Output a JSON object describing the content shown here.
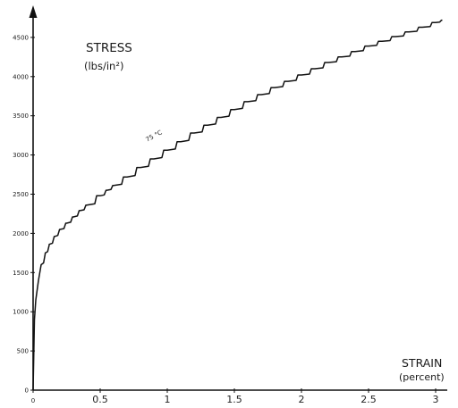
{
  "chart_data": {
    "type": "line",
    "ylabel": "STRESS",
    "ylabel_unit": "(lbs/in²)",
    "xlabel": "STRAIN",
    "xlabel_unit": "(percent)",
    "annotation": "75 °C",
    "annotation_at": [
      0.85,
      3100
    ],
    "xlim": [
      0,
      3.05
    ],
    "ylim": [
      0,
      4700
    ],
    "x_ticks": [
      0,
      0.5,
      1,
      1.5,
      2,
      2.5,
      3
    ],
    "x_tick_labels": [
      "0",
      "0.5",
      "1",
      "1.5",
      "2",
      "2.5",
      "3"
    ],
    "y_ticks": [
      0,
      500,
      1000,
      1500,
      2000,
      2500,
      3000,
      3500,
      4000,
      4500
    ],
    "y_tick_labels": [
      "0",
      "500",
      "1000",
      "1500",
      "2000",
      "2500",
      "3000",
      "3500",
      "4000",
      "4500"
    ],
    "grid": false,
    "legend": "none",
    "series": [
      {
        "x": [
          0,
          0.01,
          0.02,
          0.04,
          0.06,
          0.09,
          0.12,
          0.16,
          0.2,
          0.25,
          0.3,
          0.35,
          0.4,
          0.5,
          0.55,
          0.6,
          0.7,
          0.8,
          0.9,
          1.0,
          1.1,
          1.2,
          1.3,
          1.4,
          1.5,
          1.6,
          1.7,
          1.8,
          1.9,
          2.0,
          2.1,
          2.2,
          2.3,
          2.4,
          2.5,
          2.6,
          2.7,
          2.8,
          2.9,
          3.0,
          3.05
        ],
        "y": [
          0,
          900,
          1150,
          1400,
          1600,
          1750,
          1860,
          1960,
          2050,
          2130,
          2210,
          2290,
          2360,
          2480,
          2550,
          2610,
          2720,
          2840,
          2950,
          3060,
          3170,
          3280,
          3380,
          3480,
          3580,
          3680,
          3770,
          3860,
          3940,
          4020,
          4100,
          4180,
          4250,
          4320,
          4390,
          4450,
          4510,
          4570,
          4630,
          4690,
          4720
        ]
      }
    ]
  }
}
